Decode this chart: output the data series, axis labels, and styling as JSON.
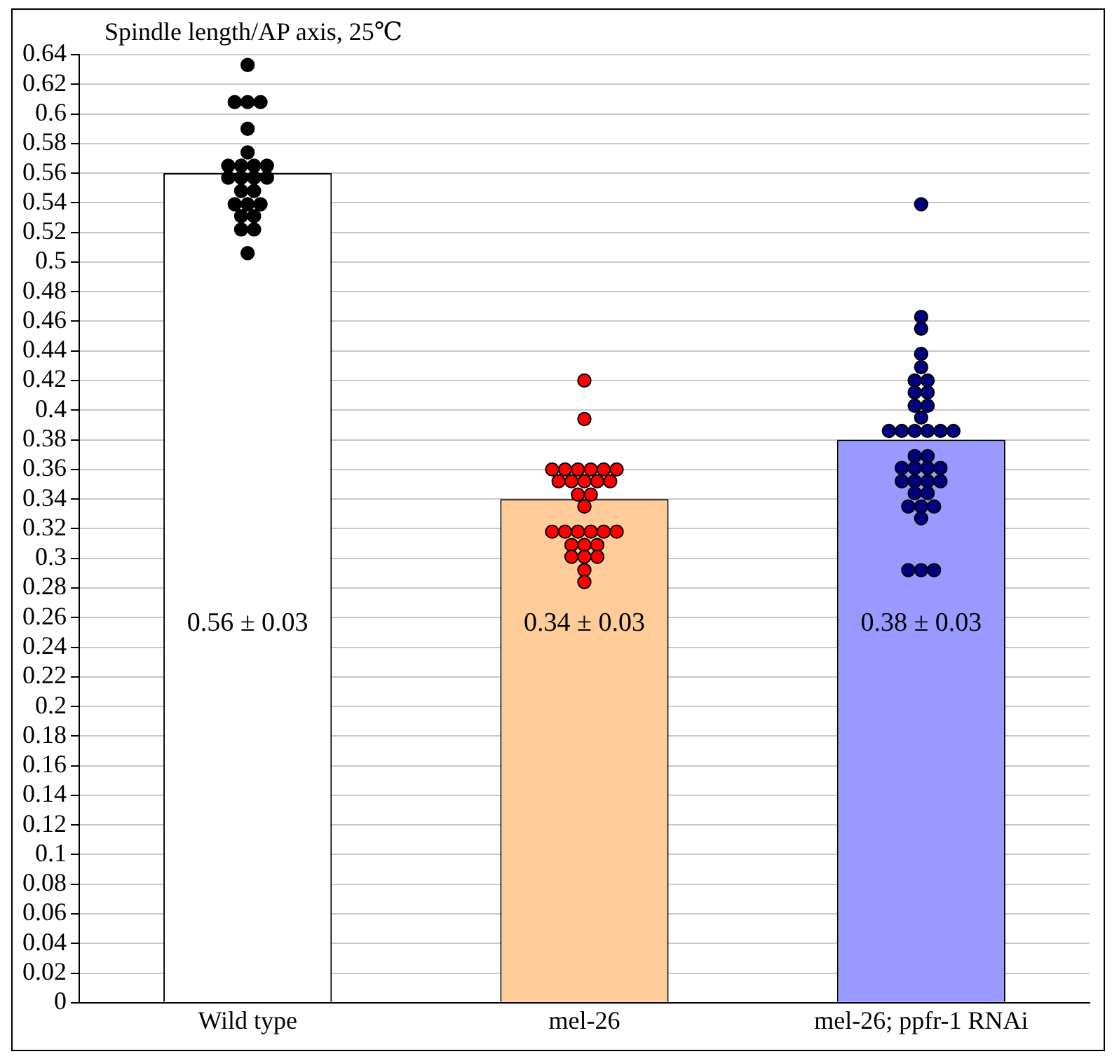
{
  "chart_data": {
    "type": "bar",
    "title": "Spindle length/AP axis, 25℃",
    "categories": [
      "Wild type",
      "mel-26",
      "mel-26; ppfr-1 RNAi"
    ],
    "series": [
      {
        "values": [
          0.56,
          0.34,
          0.38
        ],
        "colors": [
          "#ffffff",
          "#ffcc99",
          "#9999ff"
        ],
        "value_labels": [
          "0.56 ± 0.03",
          "0.34 ± 0.03",
          "0.38 ± 0.03"
        ]
      },
      {
        "type": "scatter",
        "color": "#000000",
        "x": [
          "Wild type",
          "Wild type",
          "Wild type",
          "Wild type",
          "Wild type",
          "Wild type",
          "Wild type",
          "Wild type",
          "Wild type",
          "Wild type",
          "Wild type",
          "Wild type",
          "Wild type",
          "Wild type",
          "Wild type",
          "Wild type",
          "Wild type",
          "Wild type",
          "Wild type",
          "Wild type",
          "Wild type",
          "Wild type",
          "Wild type",
          "Wild type"
        ],
        "values": [
          0.633,
          0.608,
          0.608,
          0.608,
          0.59,
          0.574,
          0.565,
          0.565,
          0.565,
          0.565,
          0.557,
          0.557,
          0.557,
          0.557,
          0.548,
          0.548,
          0.539,
          0.539,
          0.539,
          0.531,
          0.531,
          0.522,
          0.522,
          0.506
        ]
      },
      {
        "type": "scatter",
        "color": "#ff0000",
        "x": [
          "mel-26",
          "mel-26",
          "mel-26",
          "mel-26",
          "mel-26",
          "mel-26",
          "mel-26",
          "mel-26",
          "mel-26",
          "mel-26",
          "mel-26",
          "mel-26",
          "mel-26",
          "mel-26",
          "mel-26",
          "mel-26",
          "mel-26",
          "mel-26",
          "mel-26",
          "mel-26",
          "mel-26",
          "mel-26",
          "mel-26",
          "mel-26",
          "mel-26",
          "mel-26",
          "mel-26",
          "mel-26",
          "mel-26",
          "mel-26"
        ],
        "values": [
          0.42,
          0.394,
          0.36,
          0.36,
          0.36,
          0.36,
          0.36,
          0.36,
          0.352,
          0.352,
          0.352,
          0.352,
          0.352,
          0.343,
          0.343,
          0.335,
          0.318,
          0.318,
          0.318,
          0.318,
          0.318,
          0.318,
          0.309,
          0.309,
          0.309,
          0.301,
          0.301,
          0.301,
          0.292,
          0.284
        ]
      },
      {
        "type": "scatter",
        "color": "#000080",
        "x": [
          "mel-26; ppfr-1 RNAi",
          "mel-26; ppfr-1 RNAi",
          "mel-26; ppfr-1 RNAi",
          "mel-26; ppfr-1 RNAi",
          "mel-26; ppfr-1 RNAi",
          "mel-26; ppfr-1 RNAi",
          "mel-26; ppfr-1 RNAi",
          "mel-26; ppfr-1 RNAi",
          "mel-26; ppfr-1 RNAi",
          "mel-26; ppfr-1 RNAi",
          "mel-26; ppfr-1 RNAi",
          "mel-26; ppfr-1 RNAi",
          "mel-26; ppfr-1 RNAi",
          "mel-26; ppfr-1 RNAi",
          "mel-26; ppfr-1 RNAi",
          "mel-26; ppfr-1 RNAi",
          "mel-26; ppfr-1 RNAi",
          "mel-26; ppfr-1 RNAi",
          "mel-26; ppfr-1 RNAi",
          "mel-26; ppfr-1 RNAi",
          "mel-26; ppfr-1 RNAi",
          "mel-26; ppfr-1 RNAi",
          "mel-26; ppfr-1 RNAi",
          "mel-26; ppfr-1 RNAi",
          "mel-26; ppfr-1 RNAi",
          "mel-26; ppfr-1 RNAi",
          "mel-26; ppfr-1 RNAi",
          "mel-26; ppfr-1 RNAi",
          "mel-26; ppfr-1 RNAi",
          "mel-26; ppfr-1 RNAi",
          "mel-26; ppfr-1 RNAi",
          "mel-26; ppfr-1 RNAi",
          "mel-26; ppfr-1 RNAi",
          "mel-26; ppfr-1 RNAi",
          "mel-26; ppfr-1 RNAi",
          "mel-26; ppfr-1 RNAi",
          "mel-26; ppfr-1 RNAi"
        ],
        "values": [
          0.539,
          0.463,
          0.455,
          0.438,
          0.429,
          0.42,
          0.42,
          0.412,
          0.412,
          0.403,
          0.403,
          0.395,
          0.386,
          0.386,
          0.386,
          0.386,
          0.386,
          0.386,
          0.369,
          0.369,
          0.361,
          0.361,
          0.361,
          0.361,
          0.352,
          0.352,
          0.352,
          0.352,
          0.344,
          0.344,
          0.335,
          0.335,
          0.335,
          0.327,
          0.292,
          0.292,
          0.292
        ]
      }
    ],
    "ylim": [
      0,
      0.64
    ],
    "yticks": [
      0,
      0.02,
      0.04,
      0.06,
      0.08,
      0.1,
      0.12,
      0.14,
      0.16,
      0.18,
      0.2,
      0.22,
      0.24,
      0.26,
      0.28,
      0.3,
      0.32,
      0.34,
      0.36,
      0.38,
      0.4,
      0.42,
      0.44,
      0.46,
      0.48,
      0.5,
      0.52,
      0.54,
      0.56,
      0.58,
      0.6,
      0.62,
      0.64
    ],
    "grid": "y",
    "legend": false,
    "marker": "circle"
  }
}
